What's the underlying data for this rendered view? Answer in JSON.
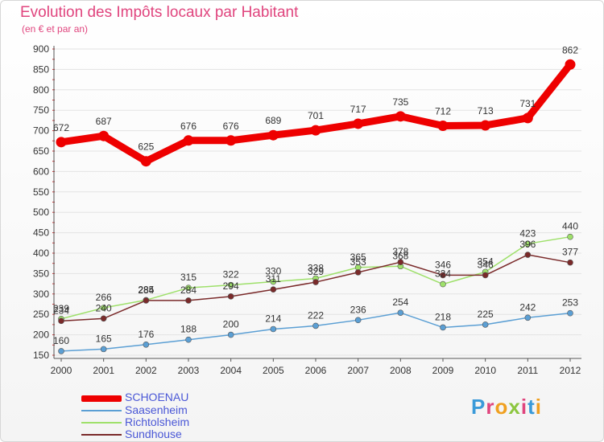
{
  "header": {
    "title": "Evolution des Impôts locaux par Habitant",
    "subtitle": "(en € et par an)"
  },
  "logo": {
    "text": "Proxiti",
    "letter_colors": [
      "#3a9ad9",
      "#e0457e",
      "#f0a020",
      "#8cc63f",
      "#e0457e",
      "#3a9ad9",
      "#f0a020"
    ]
  },
  "chart_data": {
    "type": "line",
    "x": [
      "2000",
      "2001",
      "2002",
      "2003",
      "2004",
      "2005",
      "2006",
      "2007",
      "2008",
      "2009",
      "2010",
      "2011",
      "2012"
    ],
    "ylim": [
      150,
      900
    ],
    "yticks": [
      150,
      200,
      250,
      300,
      350,
      400,
      450,
      500,
      550,
      600,
      650,
      700,
      750,
      800,
      850,
      900
    ],
    "grid": "horizontal",
    "legend_position": "bottom-left",
    "series": [
      {
        "name": "SCHOENAU",
        "color": "#ee0000",
        "values": [
          672,
          687,
          625,
          676,
          676,
          689,
          701,
          717,
          735,
          712,
          713,
          731,
          862
        ]
      },
      {
        "name": "Saasenheim",
        "color": "#5b9fd4",
        "values": [
          160,
          165,
          176,
          188,
          200,
          214,
          222,
          236,
          254,
          218,
          225,
          242,
          253
        ]
      },
      {
        "name": "Richtolsheim",
        "color": "#9ee06a",
        "values": [
          239,
          266,
          285,
          315,
          322,
          330,
          338,
          365,
          368,
          324,
          354,
          423,
          440
        ]
      },
      {
        "name": "Sundhouse",
        "color": "#7a2a2a",
        "values": [
          234,
          240,
          284,
          284,
          294,
          311,
          329,
          353,
          378,
          346,
          346,
          396,
          377
        ]
      }
    ]
  }
}
